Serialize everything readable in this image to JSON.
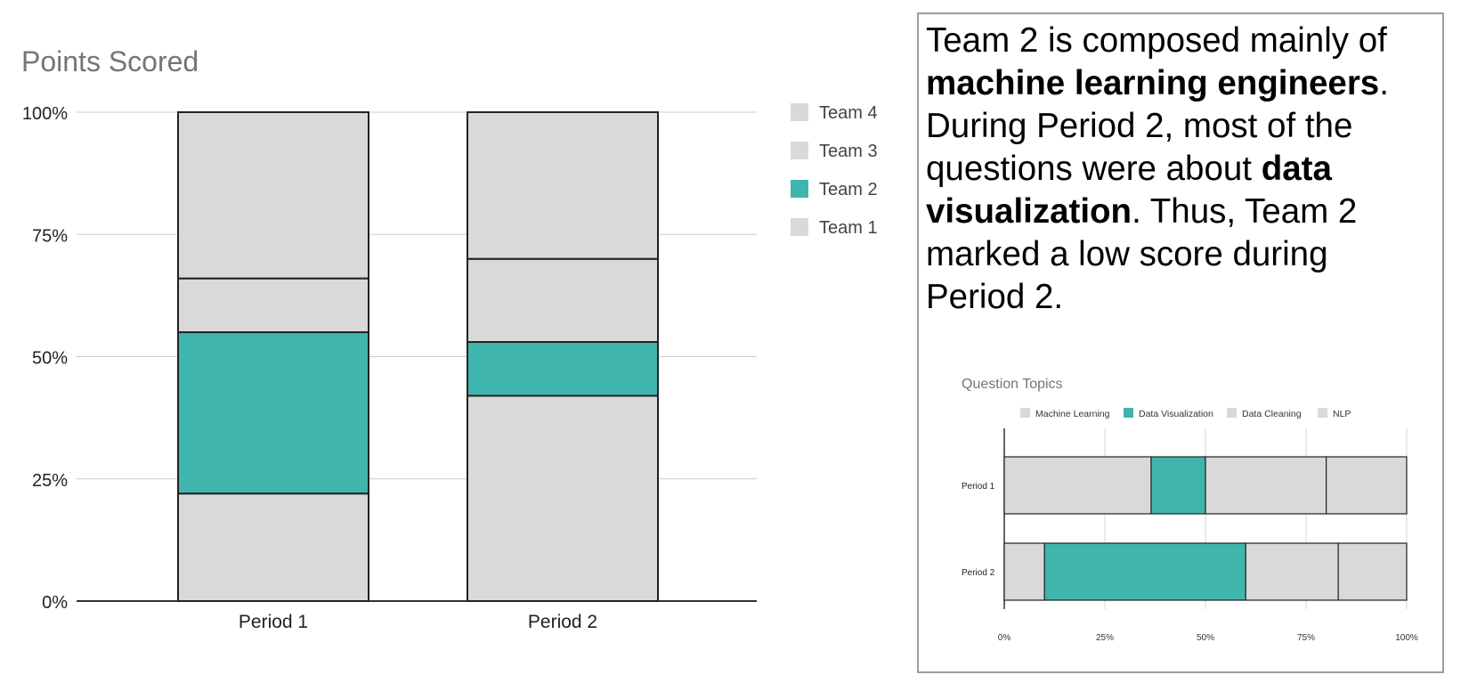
{
  "chart_data": [
    {
      "type": "bar",
      "stacked": true,
      "normalized": true,
      "title": "Points Scored",
      "categories": [
        "Period 1",
        "Period 2"
      ],
      "y_ticks": [
        "0%",
        "25%",
        "50%",
        "75%",
        "100%"
      ],
      "ylim": [
        0,
        100
      ],
      "legend_position": "right",
      "series": [
        {
          "name": "Team 1",
          "values": [
            22,
            42
          ],
          "color": "#d9d9d9"
        },
        {
          "name": "Team 2",
          "values": [
            33,
            11
          ],
          "color": "#40b5ad"
        },
        {
          "name": "Team 3",
          "values": [
            11,
            17
          ],
          "color": "#d9d9d9"
        },
        {
          "name": "Team 4",
          "values": [
            34,
            30
          ],
          "color": "#d9d9d9"
        }
      ]
    },
    {
      "type": "bar",
      "orientation": "horizontal",
      "stacked": true,
      "normalized": true,
      "title": "Question Topics",
      "categories": [
        "Period 1",
        "Period 2"
      ],
      "x_ticks": [
        "0%",
        "25%",
        "50%",
        "75%",
        "100%"
      ],
      "xlim": [
        0,
        100
      ],
      "legend_position": "top",
      "series": [
        {
          "name": "Machine Learning",
          "values": [
            36.5,
            10
          ],
          "color": "#d9d9d9"
        },
        {
          "name": "Data Visualization",
          "values": [
            13.5,
            50
          ],
          "color": "#40b5ad"
        },
        {
          "name": "Data Cleaning",
          "values": [
            30,
            23
          ],
          "color": "#d9d9d9"
        },
        {
          "name": "NLP",
          "values": [
            20,
            17
          ],
          "color": "#d9d9d9"
        }
      ]
    }
  ],
  "annotation": {
    "t1": "Team 2 is composed mainly of ",
    "b1": "machine learning engineers",
    "t2": ". During Period 2, most of the questions were about ",
    "b2": "data visualization",
    "t3": ". Thus, Team 2 marked a low score during Period 2."
  }
}
